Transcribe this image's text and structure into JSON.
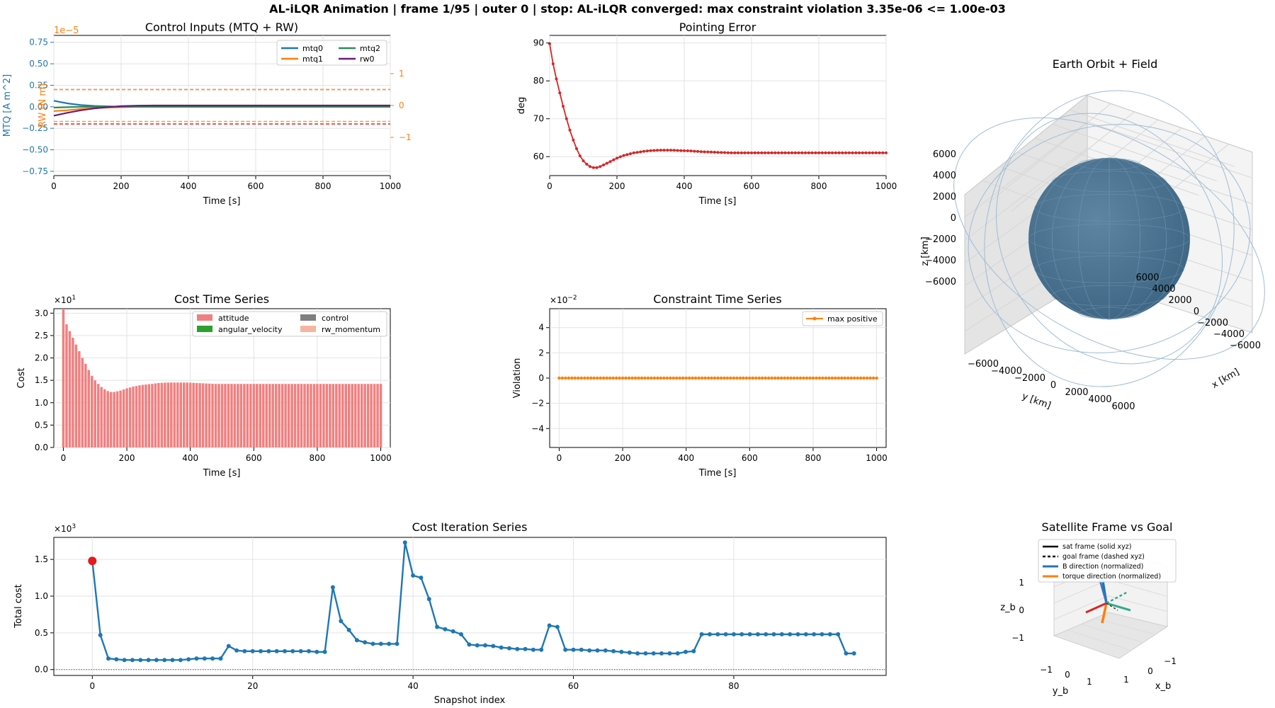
{
  "figure": {
    "suptitle": "AL-iLQR Animation | frame 1/95 | outer 0 | stop: AL-iLQR converged: max constraint violation 3.35e-06 <= 1.00e-03"
  },
  "colors": {
    "mtq0": "#1f77b4",
    "mtq1": "#ff7f0e",
    "mtq2": "#2e8b57",
    "rw0": "#6a1b7a",
    "pointing": "#d62728",
    "attitude": "#f08080",
    "angular_velocity": "#2ca02c",
    "control": "#7f7f7f",
    "rw_momentum": "#f4b6a0",
    "constraint": "#ff7f0e",
    "iteration": "#1f77b4",
    "marker": "#e41a1c",
    "earth": "#4a7290",
    "field": "#9ebcd6"
  },
  "chart_data": [
    {
      "id": "control",
      "type": "line",
      "title": "Control Inputs (MTQ + RW)",
      "xlabel": "Time [s]",
      "ylabel": "MTQ [A m^2]",
      "ylabel_right": "RW [N m]",
      "offset_right": "1e−5",
      "xlim": [
        0,
        1000
      ],
      "ylim": [
        -0.8,
        0.83
      ],
      "ylim_right": [
        -2.2,
        2.2
      ],
      "xticks": [
        "0",
        "200",
        "400",
        "600",
        "800",
        "1000"
      ],
      "yticks": [
        "0.75",
        "0.50",
        "0.25",
        "0.00",
        "−0.25",
        "−0.50",
        "−0.75"
      ],
      "yticks_right": [
        "1",
        "0",
        "−1"
      ],
      "legend": [
        "mtq0",
        "mtq1",
        "mtq2",
        "rw0"
      ],
      "legend_position": "top-right",
      "limits_mtq": [
        0.2,
        -0.2
      ],
      "limits_rw": [
        0.5,
        -0.5
      ],
      "series": [
        {
          "name": "mtq0",
          "axis": "left",
          "x": [
            0,
            40,
            80,
            120,
            160,
            200,
            250,
            300,
            400,
            1000
          ],
          "y": [
            0.07,
            0.04,
            0.02,
            0.01,
            0.005,
            0.0,
            0.0,
            0.0,
            0.0,
            0.0
          ]
        },
        {
          "name": "mtq1",
          "axis": "left",
          "x": [
            0,
            40,
            80,
            120,
            160,
            200,
            250,
            300,
            400,
            1000
          ],
          "y": [
            -0.05,
            -0.04,
            -0.025,
            -0.015,
            -0.01,
            -0.005,
            0.0,
            0.0,
            0.0,
            0.0
          ]
        },
        {
          "name": "mtq2",
          "axis": "left",
          "x": [
            0,
            40,
            80,
            120,
            160,
            200,
            250,
            300,
            400,
            1000
          ],
          "y": [
            -0.01,
            -0.005,
            0.0,
            0.0,
            0.0,
            0.0,
            0.0,
            0.0,
            0.0,
            0.0
          ]
        },
        {
          "name": "rw0",
          "axis": "right",
          "x": [
            0,
            40,
            80,
            120,
            160,
            200,
            250,
            300,
            400,
            1000
          ],
          "y": [
            -0.32,
            -0.23,
            -0.15,
            -0.09,
            -0.05,
            -0.02,
            -0.005,
            0.0,
            0.0,
            0.0
          ]
        }
      ]
    },
    {
      "id": "pointing",
      "type": "line",
      "title": "Pointing Error",
      "xlabel": "Time [s]",
      "ylabel": "deg",
      "xlim": [
        0,
        1000
      ],
      "ylim": [
        55,
        92
      ],
      "xticks": [
        "0",
        "200",
        "400",
        "600",
        "800",
        "1000"
      ],
      "yticks": [
        "90",
        "80",
        "70",
        "60"
      ],
      "series": [
        {
          "name": "pointing",
          "x": [
            0,
            10,
            20,
            30,
            40,
            50,
            60,
            70,
            80,
            90,
            100,
            110,
            120,
            130,
            140,
            150,
            160,
            180,
            200,
            220,
            250,
            280,
            300,
            330,
            360,
            390,
            420,
            450,
            480,
            510,
            540,
            570,
            600,
            650,
            700,
            1000
          ],
          "y": [
            89.8,
            84.5,
            80.5,
            76.8,
            73.3,
            70.0,
            67.0,
            64.4,
            62.1,
            60.2,
            58.9,
            58.0,
            57.4,
            57.1,
            57.1,
            57.4,
            57.8,
            58.7,
            59.6,
            60.3,
            61.0,
            61.4,
            61.6,
            61.7,
            61.7,
            61.6,
            61.5,
            61.3,
            61.2,
            61.1,
            61.0,
            61.0,
            61.0,
            61.0,
            61.0,
            61.0
          ]
        }
      ]
    },
    {
      "id": "cost_time",
      "type": "bar",
      "title": "Cost Time Series",
      "xlabel": "Time [s]",
      "ylabel": "Cost",
      "offset": "×10",
      "offset_exp": "1",
      "xlim": [
        -30,
        1030
      ],
      "ylim": [
        0,
        3.1
      ],
      "xticks": [
        "0",
        "200",
        "400",
        "600",
        "800",
        "1000"
      ],
      "yticks": [
        "3.0",
        "2.5",
        "2.0",
        "1.5",
        "1.0",
        "0.5",
        "0.0"
      ],
      "legend": [
        "attitude",
        "angular_velocity",
        "control",
        "rw_momentum"
      ],
      "legend_position": "top-right",
      "bar_step": 10,
      "attitude_x": [
        0,
        10,
        20,
        30,
        40,
        50,
        60,
        70,
        80,
        90,
        100,
        110,
        120,
        130,
        140,
        150,
        160,
        180,
        200,
        220,
        250,
        280,
        300,
        330,
        360,
        390,
        420,
        450,
        480,
        510,
        540,
        570,
        600,
        1000
      ],
      "attitude_y": [
        3.1,
        2.75,
        2.6,
        2.45,
        2.3,
        2.15,
        2.0,
        1.87,
        1.73,
        1.6,
        1.5,
        1.42,
        1.35,
        1.3,
        1.26,
        1.24,
        1.24,
        1.27,
        1.32,
        1.36,
        1.4,
        1.42,
        1.44,
        1.45,
        1.45,
        1.45,
        1.44,
        1.43,
        1.42,
        1.42,
        1.42,
        1.42,
        1.42,
        1.42
      ]
    },
    {
      "id": "constraint",
      "type": "line",
      "title": "Constraint Time Series",
      "xlabel": "Time [s]",
      "ylabel": "Violation",
      "offset": "×10",
      "offset_exp": "−2",
      "xlim": [
        -30,
        1030
      ],
      "ylim": [
        -5.5,
        5.5
      ],
      "xticks": [
        "0",
        "200",
        "400",
        "600",
        "800",
        "1000"
      ],
      "yticks": [
        "4",
        "2",
        "0",
        "−2",
        "−4"
      ],
      "legend": [
        "max positive"
      ],
      "legend_position": "top-right",
      "x_start": 0,
      "x_end": 1000,
      "x_step": 10,
      "y_value": 0
    },
    {
      "id": "iteration",
      "type": "line",
      "title": "Cost Iteration Series",
      "xlabel": "Snapshot index",
      "ylabel": "Total cost",
      "offset": "×10",
      "offset_exp": "3",
      "xlim": [
        -4.8,
        99
      ],
      "ylim": [
        -0.08,
        1.8
      ],
      "xticks": [
        "0",
        "20",
        "40",
        "60",
        "80"
      ],
      "yticks": [
        "1.5",
        "1.0",
        "0.5",
        "0.0"
      ],
      "values": [
        1.48,
        0.47,
        0.15,
        0.14,
        0.13,
        0.13,
        0.13,
        0.13,
        0.13,
        0.13,
        0.13,
        0.13,
        0.14,
        0.15,
        0.15,
        0.15,
        0.15,
        0.32,
        0.26,
        0.25,
        0.25,
        0.25,
        0.25,
        0.25,
        0.25,
        0.25,
        0.25,
        0.25,
        0.24,
        0.24,
        1.12,
        0.66,
        0.54,
        0.4,
        0.37,
        0.35,
        0.35,
        0.35,
        0.35,
        1.73,
        1.28,
        1.25,
        0.96,
        0.58,
        0.55,
        0.52,
        0.48,
        0.34,
        0.33,
        0.33,
        0.32,
        0.3,
        0.29,
        0.28,
        0.28,
        0.27,
        0.27,
        0.6,
        0.58,
        0.27,
        0.27,
        0.27,
        0.26,
        0.26,
        0.26,
        0.25,
        0.24,
        0.23,
        0.22,
        0.22,
        0.22,
        0.22,
        0.22,
        0.22,
        0.24,
        0.25,
        0.48,
        0.48,
        0.48,
        0.48,
        0.48,
        0.48,
        0.48,
        0.48,
        0.48,
        0.48,
        0.48,
        0.48,
        0.48,
        0.48,
        0.48,
        0.48,
        0.48,
        0.48,
        0.22,
        0.22
      ],
      "highlight_index": 0
    },
    {
      "id": "orbit3d",
      "type": "scatter",
      "title": "Earth Orbit + Field",
      "xlabel": "x [km]",
      "ylabel": "y [km]",
      "zlabel": "z [km]",
      "ticks": [
        "−6000",
        "−4000",
        "−2000",
        "0",
        "2000",
        "4000",
        "6000"
      ]
    },
    {
      "id": "frame3d",
      "type": "scatter",
      "title": "Satellite Frame vs Goal",
      "xlabel": "x_b",
      "ylabel": "y_b",
      "zlabel": "z_b",
      "ticks": [
        "−1",
        "0",
        "1"
      ],
      "legend": [
        "sat frame (solid xyz)",
        "goal frame (dashed xyz)",
        "B direction (normalized)",
        "torque direction (normalized)"
      ],
      "legend_position": "top"
    }
  ]
}
